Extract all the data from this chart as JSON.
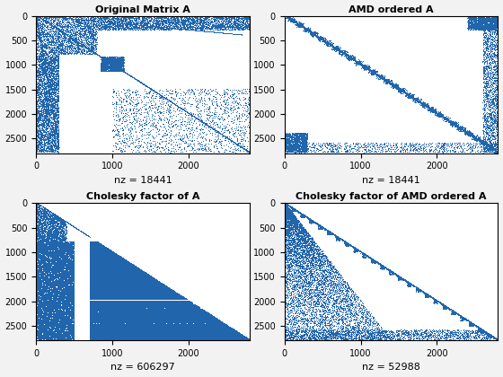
{
  "titles": [
    "Original Matrix A",
    "AMD ordered A",
    "Cholesky factor of A",
    "Cholesky factor of AMD ordered A"
  ],
  "xlabels": [
    "nz = 18441",
    "nz = 18441",
    "nz = 606297",
    "nz = 52988"
  ],
  "n": 2800,
  "marker_color": "#2166ac",
  "marker_size": 0.5,
  "xlim": [
    0,
    2800
  ],
  "ylim_bottom": 2800,
  "ylim_top": 0,
  "xticks": [
    0,
    1000,
    2000
  ],
  "yticks": [
    0,
    500,
    1000,
    1500,
    2000,
    2500
  ],
  "background_color": "#ffffff",
  "fig_facecolor": "#f2f2f2",
  "title_fontsize": 8,
  "xlabel_fontsize": 8,
  "tick_fontsize": 7
}
